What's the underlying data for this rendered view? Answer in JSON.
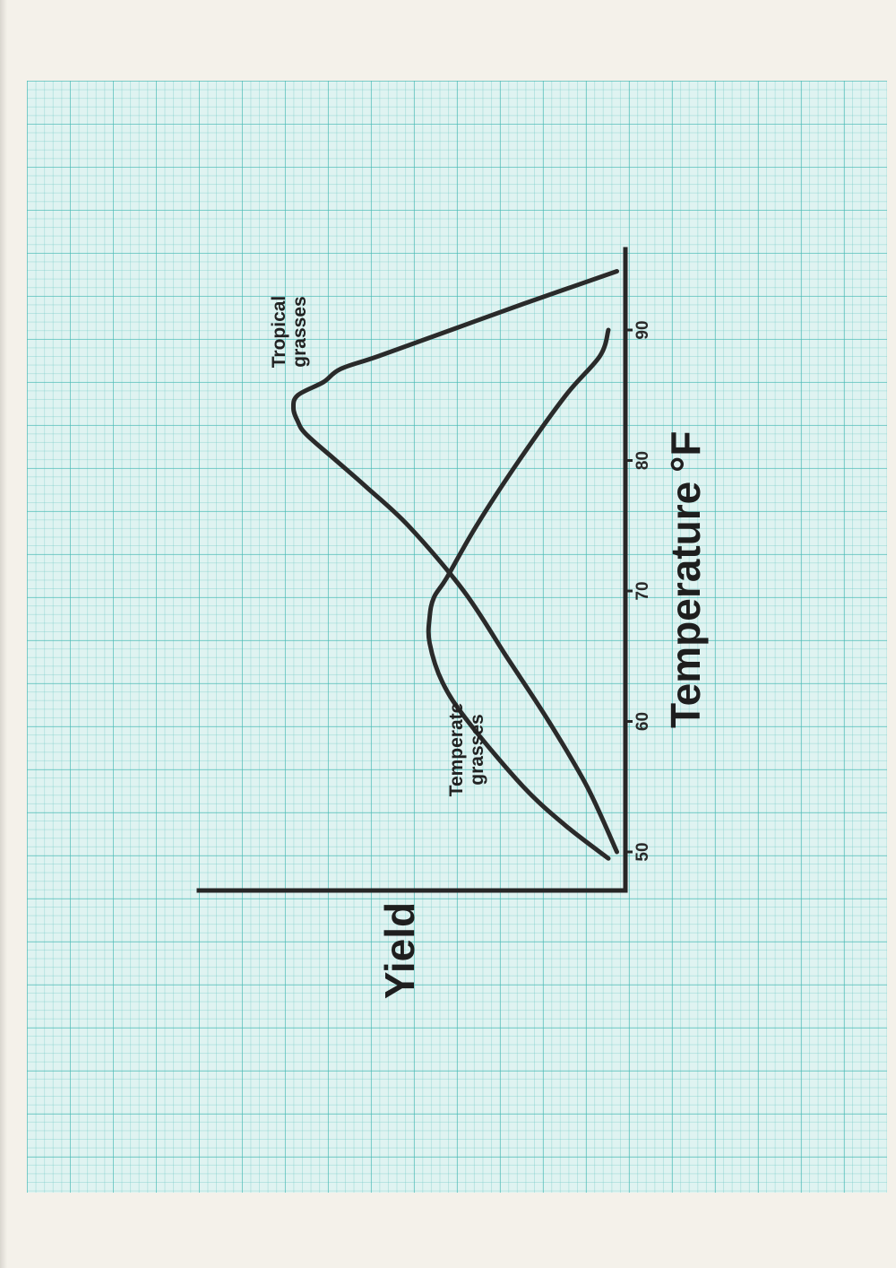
{
  "chart_data": {
    "type": "line",
    "orientation": "rotated 90 degrees counter-clockwise on a graph-paper sheet",
    "xlabel": "Temperature",
    "xunit": "°F",
    "ylabel": "Yield",
    "x_ticks": [
      50,
      60,
      70,
      80,
      90
    ],
    "xlim": [
      48,
      95
    ],
    "ylim": [
      0,
      1
    ],
    "y_scale": "relative (no tick labels)",
    "grid": true,
    "series": [
      {
        "name": "Tropical grasses",
        "label_lines": [
          "Tropical",
          "grasses"
        ],
        "x": [
          50,
          55,
          60,
          65,
          70,
          75,
          78,
          80,
          82,
          83,
          84,
          85,
          86,
          87,
          88,
          90,
          92,
          94.5
        ],
        "y": [
          0.02,
          0.09,
          0.18,
          0.28,
          0.38,
          0.51,
          0.61,
          0.68,
          0.75,
          0.77,
          0.78,
          0.77,
          0.71,
          0.67,
          0.58,
          0.41,
          0.24,
          0.02
        ]
      },
      {
        "name": "Temperate grasses",
        "label_lines": [
          "Temperate",
          "grasses"
        ],
        "x": [
          49.5,
          52,
          55,
          60,
          63,
          66,
          68,
          69.5,
          71,
          75,
          80,
          85,
          88,
          90
        ],
        "y": [
          0.04,
          0.14,
          0.24,
          0.37,
          0.43,
          0.46,
          0.46,
          0.45,
          0.42,
          0.35,
          0.25,
          0.14,
          0.06,
          0.04
        ]
      }
    ]
  }
}
